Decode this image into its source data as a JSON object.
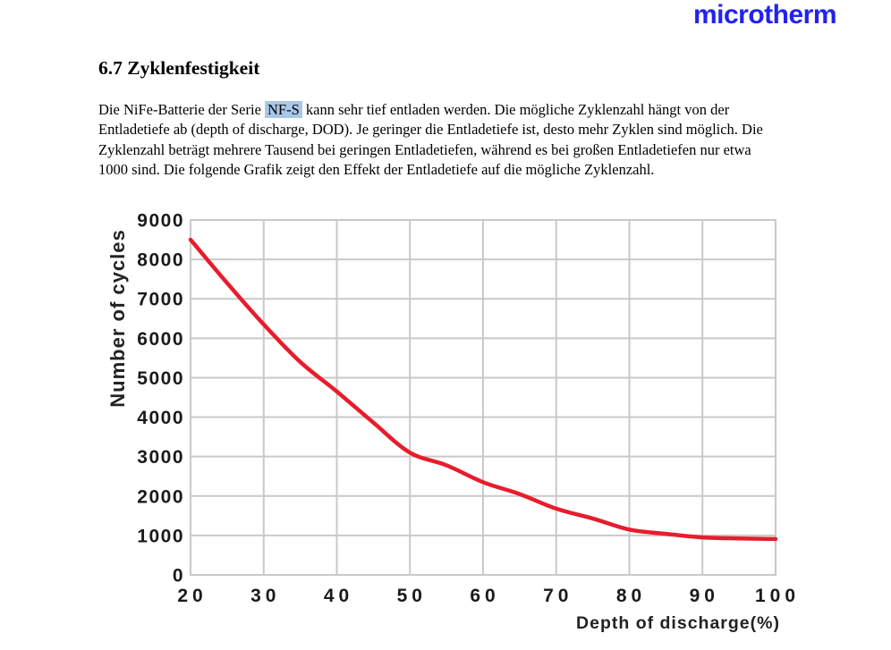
{
  "page": {
    "logo": "microtherm",
    "heading": "6.7 Zyklenfestigkeit",
    "paragraph": {
      "line1_pre": "Die NiFe-Batterie der Serie ",
      "line1_highlight": "NF-S",
      "line1_post": " kann sehr tief entladen werden. Die mögliche Zyklenzahl hängt von der",
      "line2": "Entladetiefe ab (depth of discharge, DOD). Je geringer die Entladetiefe ist, desto mehr Zyklen sind möglich. Die",
      "line3": "Zyklenzahl beträgt mehrere Tausend bei geringen Entladetiefen, während es bei großen Entladetiefen nur etwa",
      "line4": "1000 sind. Die folgende Grafik zeigt den Effekt der Entladetiefe auf die mögliche Zyklenzahl."
    }
  },
  "colors": {
    "logo_blue": "#2222f0",
    "highlight_blue": "#a9c7e7",
    "curve_red": "#e81c2c",
    "grid_gray": "#c9c9c9",
    "tick_text": "#1a1a1a"
  },
  "chart_data": {
    "type": "line",
    "title": "",
    "xlabel": "Depth of discharge(%)",
    "ylabel": "Number of cycles",
    "xlim": [
      20,
      100
    ],
    "ylim": [
      0,
      9000
    ],
    "x_ticks": [
      20,
      30,
      40,
      50,
      60,
      70,
      80,
      90,
      100
    ],
    "y_ticks": [
      0,
      1000,
      2000,
      3000,
      4000,
      5000,
      6000,
      7000,
      8000,
      9000
    ],
    "grid": true,
    "legend_position": "none",
    "series": [
      {
        "name": "cycles-vs-depth-of-discharge",
        "color": "#e81c2c",
        "x": [
          20,
          25,
          30,
          35,
          40,
          45,
          50,
          55,
          60,
          65,
          70,
          75,
          80,
          85,
          90,
          95,
          100
        ],
        "y": [
          8500,
          7400,
          6350,
          5400,
          4650,
          3860,
          3100,
          2780,
          2350,
          2050,
          1680,
          1430,
          1150,
          1040,
          950,
          925,
          910
        ]
      }
    ]
  }
}
